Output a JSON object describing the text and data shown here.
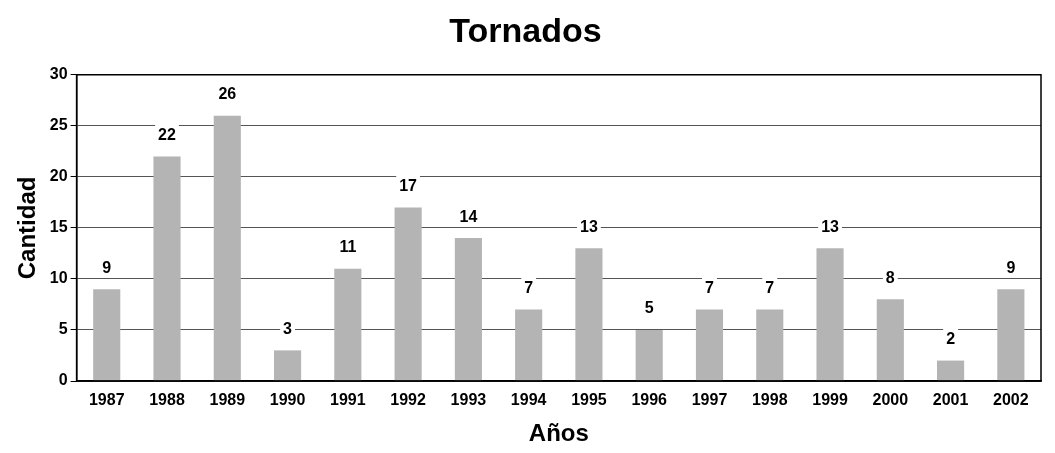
{
  "chart_data": {
    "type": "bar",
    "title": "Tornados",
    "xlabel": "Años",
    "ylabel": "Cantidad",
    "categories": [
      "1987",
      "1988",
      "1989",
      "1990",
      "1991",
      "1992",
      "1993",
      "1994",
      "1995",
      "1996",
      "1997",
      "1998",
      "1999",
      "2000",
      "2001",
      "2002"
    ],
    "values": [
      9,
      22,
      26,
      3,
      11,
      17,
      14,
      7,
      13,
      5,
      7,
      7,
      13,
      8,
      2,
      9
    ],
    "color": "#b4b4b4",
    "ylim": [
      0,
      30
    ],
    "yticks": [
      0,
      5,
      10,
      15,
      20,
      25,
      30
    ],
    "grid": "y",
    "data_labels": true,
    "legend": false
  }
}
